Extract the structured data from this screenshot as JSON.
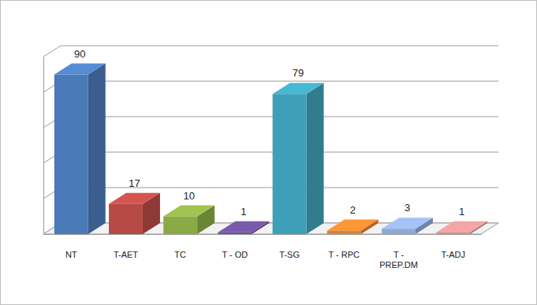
{
  "chart_data": {
    "type": "bar",
    "categories": [
      "NT",
      "T-AET",
      "TC",
      "T - OD",
      "T-SG",
      "T - RPC",
      "T - PREP.DM",
      "T-ADJ"
    ],
    "values": [
      90,
      17,
      10,
      1,
      79,
      2,
      3,
      1
    ],
    "colors": [
      "#4a7ab8",
      "#b84a45",
      "#8aaa45",
      "#6a4e96",
      "#3da0b8",
      "#e0822e",
      "#8fa9d6",
      "#d48f8f"
    ],
    "ylim": [
      0,
      100
    ],
    "yticks": [
      0,
      20,
      40,
      60,
      80,
      100
    ],
    "grid": true,
    "data_labels": true,
    "tick_labels": "x"
  }
}
